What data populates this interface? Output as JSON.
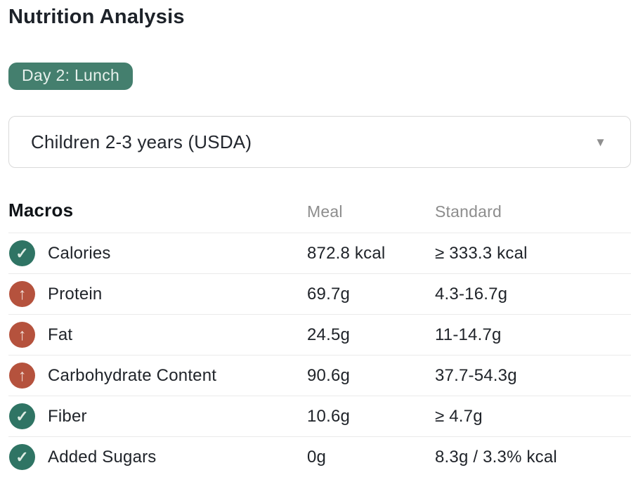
{
  "header": {
    "title": "Nutrition Analysis",
    "badge": "Day 2: Lunch"
  },
  "standard_select": {
    "value": "Children 2-3 years (USDA)"
  },
  "table": {
    "section_title": "Macros",
    "columns": {
      "meal": "Meal",
      "standard": "Standard"
    },
    "rows": [
      {
        "label": "Calories",
        "meal": "872.8 kcal",
        "standard": "≥ 333.3 kcal",
        "status": "ok"
      },
      {
        "label": "Protein",
        "meal": "69.7g",
        "standard": "4.3-16.7g",
        "status": "high"
      },
      {
        "label": "Fat",
        "meal": "24.5g",
        "standard": "11-14.7g",
        "status": "high"
      },
      {
        "label": "Carbohydrate Content",
        "meal": "90.6g",
        "standard": "37.7-54.3g",
        "status": "high"
      },
      {
        "label": "Fiber",
        "meal": "10.6g",
        "standard": "≥ 4.7g",
        "status": "ok"
      },
      {
        "label": "Added Sugars",
        "meal": "0g",
        "standard": "8.3g / 3.3% kcal",
        "status": "ok"
      }
    ]
  },
  "status_icons": {
    "ok": {
      "name": "check-icon",
      "glyph": "✓"
    },
    "high": {
      "name": "arrow-up-icon",
      "glyph": "↑"
    }
  },
  "icons": {
    "dropdown_caret": {
      "name": "caret-down-icon",
      "glyph": "▼"
    }
  },
  "colors": {
    "badge_bg": "#447f6e",
    "ok_bg": "#2f7464",
    "high_bg": "#b5523d",
    "muted_text": "#8d8d8d",
    "dark_text": "#20242a",
    "separator": "#eaeaea"
  }
}
